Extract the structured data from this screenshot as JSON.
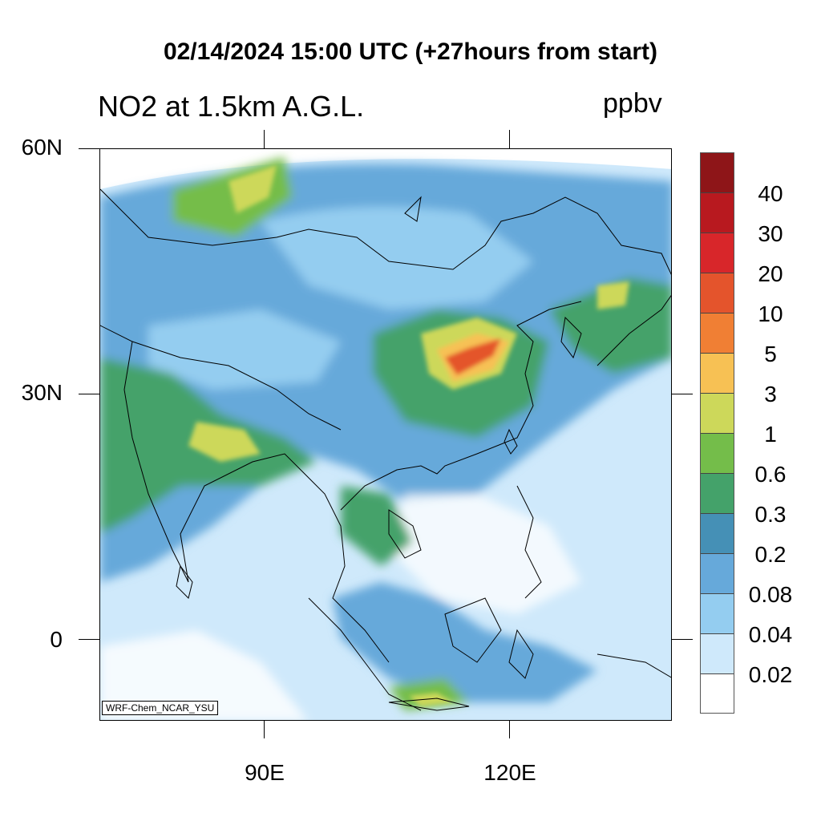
{
  "title": "02/14/2024 15:00 UTC (+27hours from start)",
  "subtitle": "NO2 at 1.5km A.G.L.",
  "units": "ppbv",
  "credit": "WRF-Chem_NCAR_YSU",
  "lat_labels": [
    "60N",
    "30N",
    "0"
  ],
  "lon_labels": [
    "90E",
    "120E"
  ],
  "colorbar": {
    "labels": [
      "40",
      "30",
      "20",
      "10",
      "5",
      "3",
      "1",
      "0.6",
      "0.3",
      "0.2",
      "0.08",
      "0.04",
      "0.02"
    ],
    "colors": [
      "#8e1518",
      "#b8191f",
      "#d8262a",
      "#e4542c",
      "#f07f34",
      "#f7c154",
      "#cdd85a",
      "#74bd4a",
      "#44a26a",
      "#4590b6",
      "#66a9da",
      "#94cdf0",
      "#cfe9fb",
      "#ffffff"
    ]
  },
  "map": {
    "ocean_color": "#cfe9fb",
    "land_base_color": "#66a9da",
    "hotspot_color": "#e4542c",
    "coastline_color": "#000000"
  }
}
